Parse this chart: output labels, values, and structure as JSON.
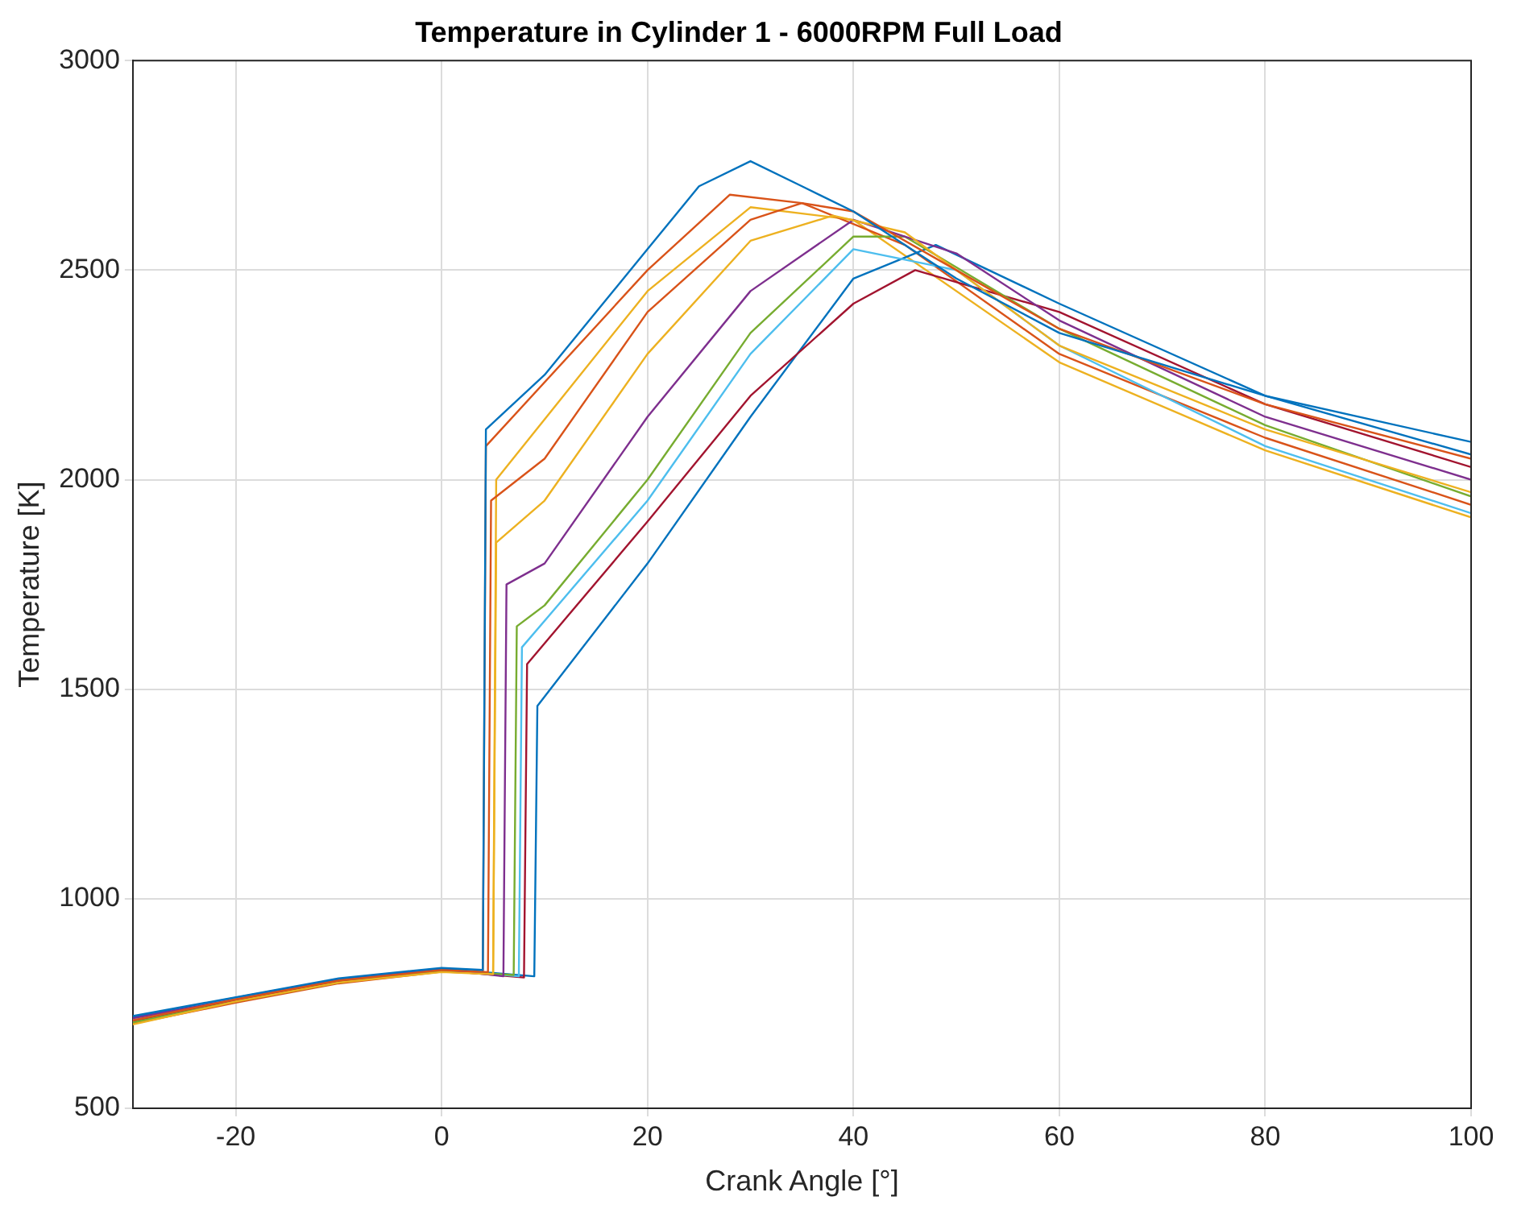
{
  "chart_data": {
    "type": "line",
    "title": "Temperature in Cylinder 1 - 6000RPM Full Load",
    "xlabel": "Crank Angle [°]",
    "ylabel": "Temperature [K]",
    "xlim": [
      -30,
      100
    ],
    "ylim": [
      500,
      3000
    ],
    "xticks": [
      -20,
      0,
      20,
      40,
      60,
      80,
      100
    ],
    "yticks": [
      500,
      1000,
      1500,
      2000,
      2500,
      3000
    ],
    "grid": true,
    "legend": false,
    "marker": "none",
    "line_style": "solid",
    "series": [
      {
        "color": "#0072bd",
        "x": [
          -30,
          -20,
          -10,
          0,
          4,
          4.3,
          10,
          20,
          25,
          30,
          35,
          40,
          50,
          60,
          80,
          100
        ],
        "values": [
          720,
          765,
          810,
          835,
          830,
          2120,
          2250,
          2550,
          2700,
          2760,
          2700,
          2640,
          2480,
          2350,
          2200,
          2090
        ]
      },
      {
        "color": "#d95319",
        "x": [
          -30,
          -20,
          -10,
          0,
          4.5,
          4.8,
          10,
          20,
          30,
          35,
          40,
          50,
          60,
          80,
          100
        ],
        "values": [
          710,
          760,
          805,
          830,
          825,
          1950,
          2050,
          2400,
          2620,
          2660,
          2640,
          2500,
          2360,
          2180,
          2050
        ]
      },
      {
        "color": "#edb120",
        "x": [
          -30,
          -20,
          -10,
          0,
          5,
          5.3,
          10,
          20,
          30,
          38,
          45,
          60,
          80,
          100
        ],
        "values": [
          700,
          755,
          800,
          825,
          820,
          1850,
          1950,
          2300,
          2570,
          2630,
          2590,
          2320,
          2120,
          1970
        ]
      },
      {
        "color": "#7e2f8e",
        "x": [
          -30,
          -20,
          -10,
          0,
          6,
          6.3,
          10,
          20,
          30,
          40,
          50,
          60,
          80,
          100
        ],
        "values": [
          715,
          760,
          808,
          832,
          815,
          1750,
          1800,
          2150,
          2450,
          2620,
          2540,
          2380,
          2150,
          2000
        ]
      },
      {
        "color": "#77ac30",
        "x": [
          -30,
          -20,
          -10,
          0,
          7,
          7.3,
          10,
          20,
          30,
          40,
          45,
          60,
          80,
          100
        ],
        "values": [
          705,
          755,
          800,
          828,
          818,
          1650,
          1700,
          2000,
          2350,
          2580,
          2580,
          2360,
          2130,
          1960
        ]
      },
      {
        "color": "#4dbeee",
        "x": [
          -30,
          -20,
          -10,
          0,
          7.5,
          7.8,
          20,
          30,
          40,
          50,
          60,
          80,
          100
        ],
        "values": [
          712,
          762,
          806,
          830,
          815,
          1600,
          1950,
          2300,
          2550,
          2500,
          2320,
          2080,
          1920
        ]
      },
      {
        "color": "#a2142f",
        "x": [
          -30,
          -20,
          -10,
          0,
          8,
          8.3,
          20,
          30,
          40,
          46,
          60,
          80,
          100
        ],
        "values": [
          708,
          758,
          803,
          829,
          812,
          1560,
          1900,
          2200,
          2420,
          2500,
          2400,
          2180,
          2030
        ]
      },
      {
        "color": "#0072bd",
        "x": [
          -30,
          -20,
          -10,
          0,
          9,
          9.3,
          20,
          30,
          40,
          48,
          60,
          80,
          100
        ],
        "values": [
          718,
          764,
          808,
          833,
          815,
          1460,
          1800,
          2150,
          2480,
          2560,
          2420,
          2200,
          2060
        ]
      },
      {
        "color": "#d95319",
        "x": [
          -30,
          -20,
          -10,
          0,
          4,
          4.3,
          20,
          28,
          35,
          45,
          60,
          80,
          100
        ],
        "values": [
          702,
          752,
          798,
          826,
          822,
          2080,
          2500,
          2680,
          2660,
          2560,
          2300,
          2100,
          1940
        ]
      },
      {
        "color": "#edb120",
        "x": [
          -30,
          -20,
          -10,
          0,
          5,
          5.3,
          20,
          30,
          40,
          60,
          80,
          100
        ],
        "values": [
          706,
          757,
          802,
          827,
          820,
          2000,
          2450,
          2650,
          2620,
          2280,
          2070,
          1910
        ]
      }
    ]
  }
}
